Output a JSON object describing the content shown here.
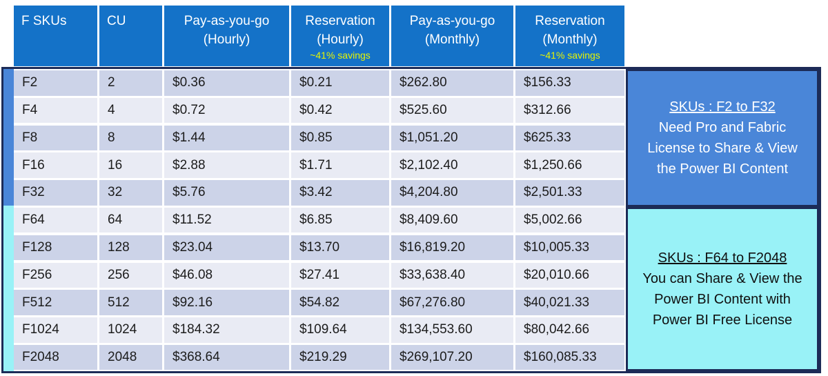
{
  "chart_data": {
    "type": "table",
    "columns": [
      {
        "line1": "F SKUs",
        "line2": "",
        "savings": ""
      },
      {
        "line1": "CU",
        "line2": "",
        "savings": ""
      },
      {
        "line1": "Pay-as-you-go",
        "line2": "(Hourly)",
        "savings": ""
      },
      {
        "line1": "Reservation",
        "line2": "(Hourly)",
        "savings": "~41% savings"
      },
      {
        "line1": "Pay-as-you-go",
        "line2": "(Monthly)",
        "savings": ""
      },
      {
        "line1": "Reservation",
        "line2": "(Monthly)",
        "savings": "~41% savings"
      }
    ],
    "rows": [
      [
        "F2",
        "2",
        "$0.36",
        "$0.21",
        "$262.80",
        "$156.33"
      ],
      [
        "F4",
        "4",
        "$0.72",
        "$0.42",
        "$525.60",
        "$312.66"
      ],
      [
        "F8",
        "8",
        "$1.44",
        "$0.85",
        "$1,051.20",
        "$625.33"
      ],
      [
        "F16",
        "16",
        "$2.88",
        "$1.71",
        "$2,102.40",
        "$1,250.66"
      ],
      [
        "F32",
        "32",
        "$5.76",
        "$3.42",
        "$4,204.80",
        "$2,501.33"
      ],
      [
        "F64",
        "64",
        "$11.52",
        "$6.85",
        "$8,409.60",
        "$5,002.66"
      ],
      [
        "F128",
        "128",
        "$23.04",
        "$13.70",
        "$16,819.20",
        "$10,005.33"
      ],
      [
        "F256",
        "256",
        "$46.08",
        "$27.41",
        "$33,638.40",
        "$20,010.66"
      ],
      [
        "F512",
        "512",
        "$92.16",
        "$54.82",
        "$67,276.80",
        "$40,021.33"
      ],
      [
        "F1024",
        "1024",
        "$184.32",
        "$109.64",
        "$134,553.60",
        "$80,042.66"
      ],
      [
        "F2048",
        "2048",
        "$368.64",
        "$219.29",
        "$269,107.20",
        "$160,085.33"
      ]
    ]
  },
  "notes": [
    {
      "title": "SKUs : F2 to F32",
      "body": "Need Pro and Fabric License to Share & View the Power BI Content",
      "bg": "#4a86d8",
      "text_color": "#ffffff"
    },
    {
      "title": "SKUs : F64 to F2048",
      "body": "You can Share & View the Power BI Content with Power BI Free License",
      "bg": "#99f2f7",
      "text_color": "#101010"
    }
  ],
  "colors": {
    "header_bg": "#1472c8",
    "header_text": "#ffffff",
    "savings_text": "#e7f400",
    "row_dark": "#ccd3e8",
    "row_light": "#e9ebf4",
    "border_navy": "#1c2b57",
    "group1_strip": "#4a86d8",
    "group2_strip": "#99f2f7"
  }
}
